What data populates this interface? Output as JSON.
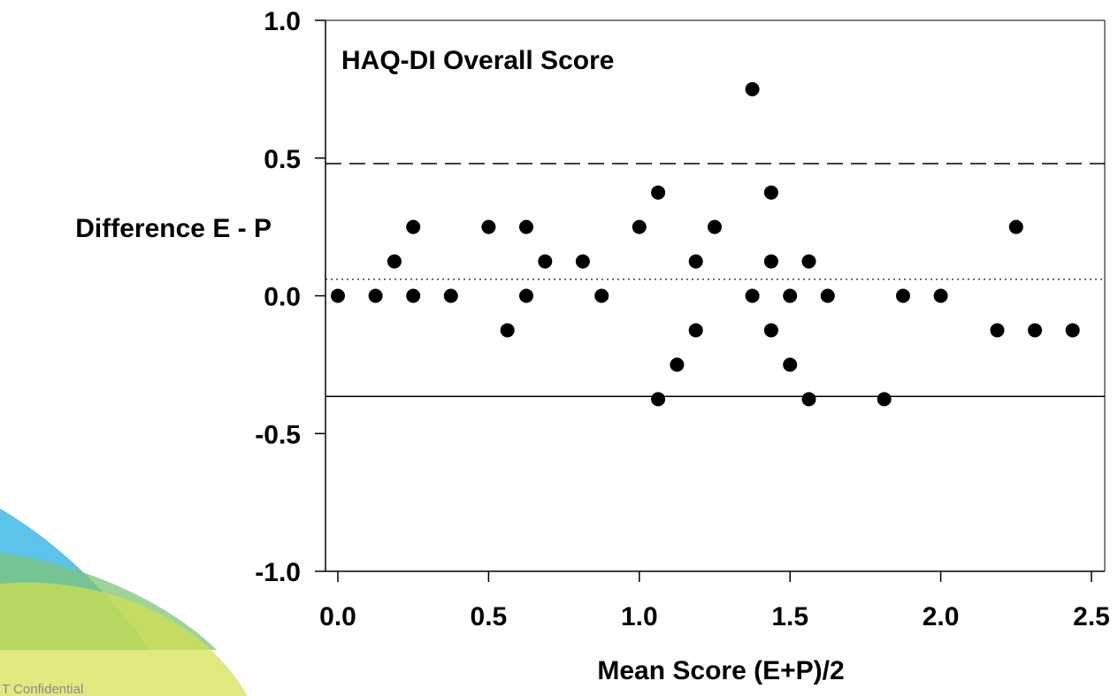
{
  "chart_data": {
    "type": "scatter",
    "title": "HAQ-DI Overall Score",
    "xlabel": "Mean Score (E+P)/2",
    "ylabel": "Difference E - P",
    "xlim": [
      0.0,
      2.5
    ],
    "ylim": [
      -1.0,
      1.0
    ],
    "x_ticks": [
      "0.0",
      "0.5",
      "1.0",
      "1.5",
      "2.0",
      "2.5"
    ],
    "y_ticks": [
      "1.0",
      "0.5",
      "0.0",
      "-0.5",
      "-1.0"
    ],
    "reference_lines": [
      {
        "style": "dashed",
        "y": 0.48
      },
      {
        "style": "dotted",
        "y": 0.06
      },
      {
        "style": "solid",
        "y": -0.365
      }
    ],
    "points": [
      {
        "x": 0.0,
        "y": 0.0
      },
      {
        "x": 0.125,
        "y": 0.0
      },
      {
        "x": 0.1875,
        "y": 0.125
      },
      {
        "x": 0.25,
        "y": 0.25
      },
      {
        "x": 0.25,
        "y": 0.0
      },
      {
        "x": 0.375,
        "y": 0.0
      },
      {
        "x": 0.5,
        "y": 0.25
      },
      {
        "x": 0.5625,
        "y": -0.125
      },
      {
        "x": 0.625,
        "y": 0.25
      },
      {
        "x": 0.625,
        "y": 0.0
      },
      {
        "x": 0.6875,
        "y": 0.125
      },
      {
        "x": 0.8125,
        "y": 0.125
      },
      {
        "x": 0.875,
        "y": 0.0
      },
      {
        "x": 1.0,
        "y": 0.25
      },
      {
        "x": 1.0625,
        "y": 0.375
      },
      {
        "x": 1.0625,
        "y": -0.375
      },
      {
        "x": 1.125,
        "y": -0.25
      },
      {
        "x": 1.1875,
        "y": 0.125
      },
      {
        "x": 1.1875,
        "y": -0.125
      },
      {
        "x": 1.25,
        "y": 0.25
      },
      {
        "x": 1.375,
        "y": 0.75
      },
      {
        "x": 1.375,
        "y": 0.0
      },
      {
        "x": 1.4375,
        "y": 0.375
      },
      {
        "x": 1.4375,
        "y": 0.125
      },
      {
        "x": 1.4375,
        "y": -0.125
      },
      {
        "x": 1.5,
        "y": 0.0
      },
      {
        "x": 1.5,
        "y": -0.25
      },
      {
        "x": 1.5625,
        "y": 0.125
      },
      {
        "x": 1.5625,
        "y": -0.375
      },
      {
        "x": 1.625,
        "y": 0.0
      },
      {
        "x": 1.8125,
        "y": -0.375
      },
      {
        "x": 1.875,
        "y": 0.0
      },
      {
        "x": 2.0,
        "y": 0.0
      },
      {
        "x": 2.1875,
        "y": -0.125
      },
      {
        "x": 2.25,
        "y": 0.25
      },
      {
        "x": 2.3125,
        "y": -0.125
      },
      {
        "x": 2.4375,
        "y": -0.125
      }
    ],
    "grid": false,
    "marker_color": "#000000"
  },
  "footer": {
    "text": "T Confidential"
  },
  "colors": {
    "decor_blue": "#3fb8e6",
    "decor_green": "#7cc576",
    "decor_lime": "#d4e04a"
  }
}
